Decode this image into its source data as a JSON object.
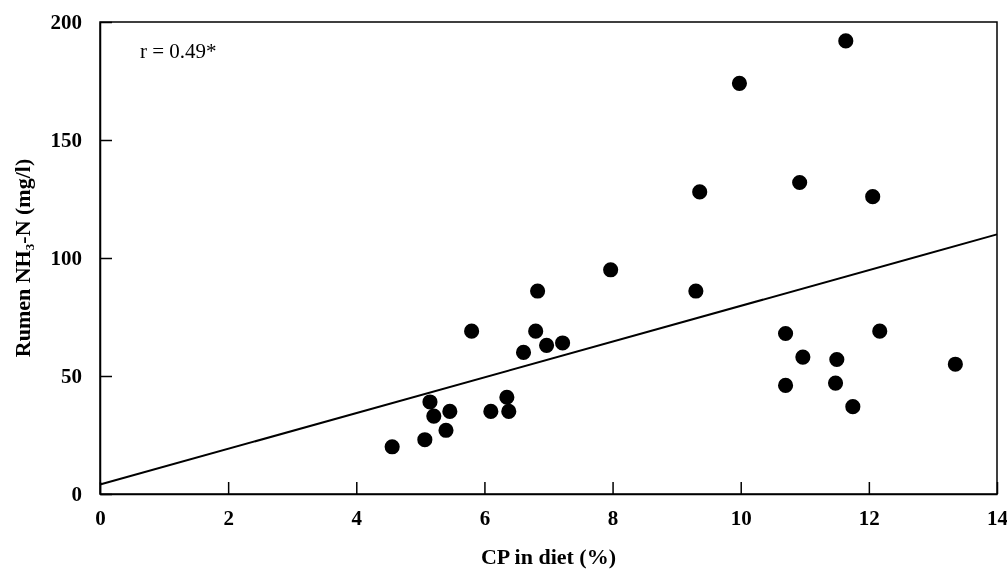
{
  "chart_data": {
    "type": "scatter",
    "xlabel": "CP in diet (%)",
    "ylabel": "Rumen NH₃-N (mg/l)",
    "xlim": [
      0,
      14
    ],
    "xticks": [
      0,
      2,
      4,
      6,
      8,
      10,
      12,
      14
    ],
    "ylim": [
      0,
      200
    ],
    "yticks": [
      0,
      50,
      100,
      150,
      200
    ],
    "grid": false,
    "annotations": [
      "r = 0.49*"
    ],
    "series": [
      {
        "marker": "circle",
        "color": "#000000",
        "x": [
          11.64,
          9.98,
          9.36,
          10.92,
          12.06,
          9.3,
          10.7,
          12.17,
          10.97,
          11.5,
          13.35,
          10.7,
          11.48,
          11.75,
          7.97,
          6.83,
          5.8,
          6.8,
          6.61,
          6.97,
          7.22,
          5.15,
          5.21,
          5.46,
          5.4,
          5.07,
          4.56,
          6.1,
          6.35,
          6.38
        ],
        "values": [
          192,
          174,
          128,
          132,
          126,
          86,
          68,
          69,
          58,
          57,
          55,
          46,
          47,
          37,
          95,
          86,
          69,
          69,
          60,
          63,
          64,
          39,
          33,
          35,
          27,
          23,
          20,
          35,
          41,
          35
        ]
      },
      {
        "type": "line",
        "color": "#000000",
        "x": [
          0,
          14
        ],
        "values": [
          4,
          110
        ]
      }
    ]
  }
}
